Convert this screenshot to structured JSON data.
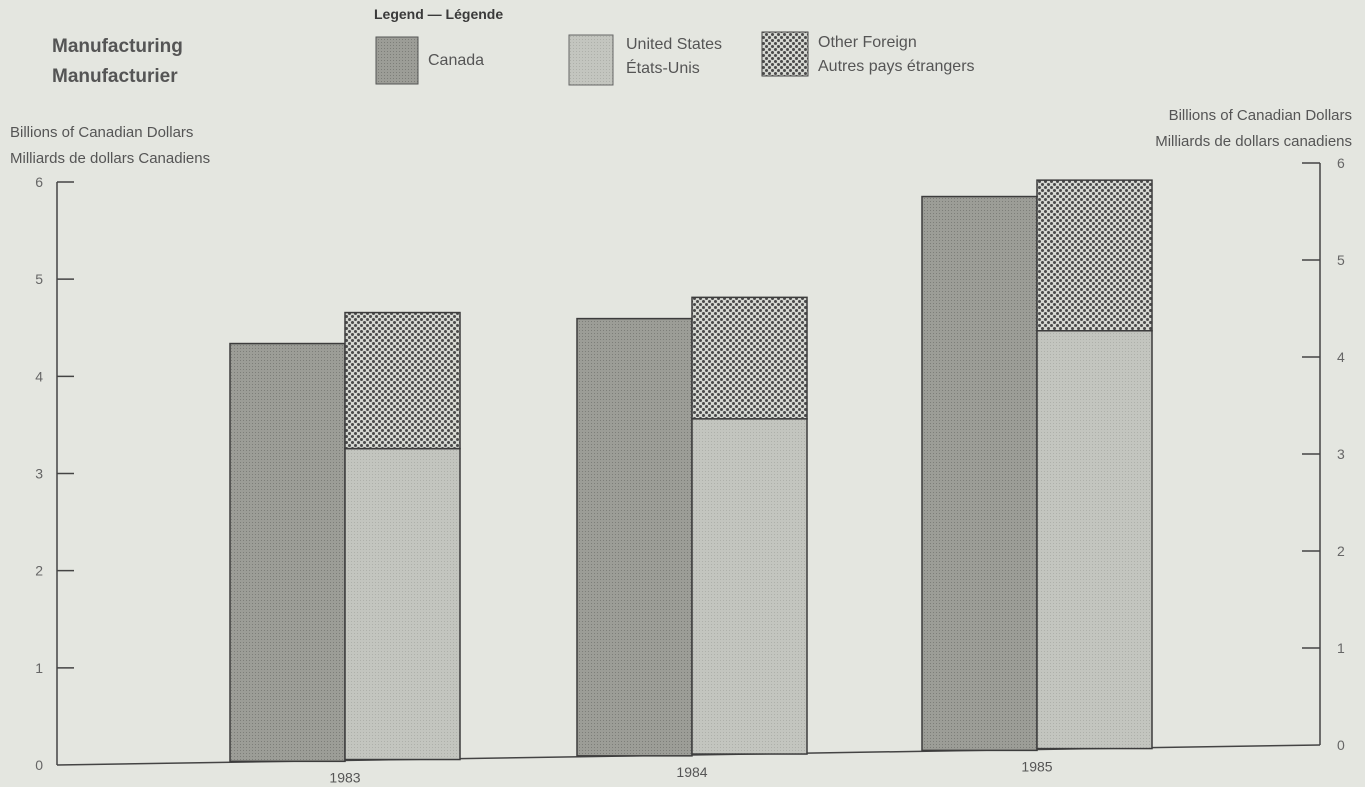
{
  "title": {
    "line1": "Manufacturing",
    "line2": "Manufacturier"
  },
  "legend": {
    "heading": "Legend — Légende",
    "items": [
      {
        "line1": "Canada",
        "line2": ""
      },
      {
        "line1": "United States",
        "line2": "États-Unis"
      },
      {
        "line1": "Other Foreign",
        "line2": "Autres pays étrangers"
      }
    ]
  },
  "left_axis": {
    "line1": "Billions of Canadian Dollars",
    "line2": "Milliards de dollars Canadiens"
  },
  "right_axis": {
    "line1": "Billions of Canadian Dollars",
    "line2": "Milliards de dollars canadiens"
  },
  "colors": {
    "canada": "#9c9d97",
    "united_states": "#c3c5bf",
    "other_foreign_bg": "#d6d8d2",
    "other_foreign_dot": "#4a4a4a",
    "outline": "#3c3c3c"
  },
  "chart_data": {
    "type": "bar",
    "stacked_second_bar": true,
    "categories": [
      "1983",
      "1984",
      "1985"
    ],
    "series": [
      {
        "name": "Canada",
        "values": [
          4.3,
          4.5,
          5.7
        ]
      },
      {
        "name": "United States",
        "values": [
          3.2,
          3.45,
          4.3
        ]
      },
      {
        "name": "Other Foreign",
        "values": [
          1.4,
          1.25,
          1.55
        ]
      }
    ],
    "ylim": [
      0,
      6
    ],
    "yticks": [
      "0",
      "1",
      "2",
      "3",
      "4",
      "5",
      "6"
    ],
    "grid": false,
    "legend_position": "top"
  }
}
